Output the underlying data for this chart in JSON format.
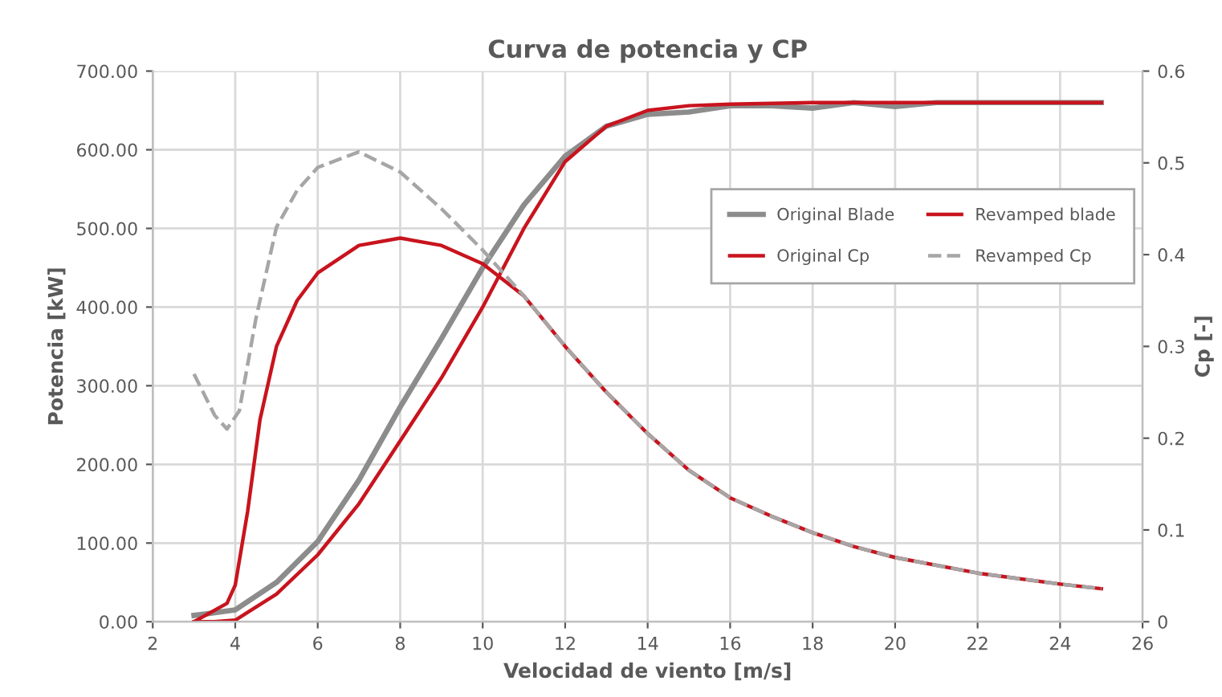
{
  "chart_data": {
    "type": "line",
    "title": "Curva de potencia y CP",
    "xlabel": "Velocidad de viento [m/s]",
    "ylabel": "Potencia [kW]",
    "y2label": "Cp [-]",
    "xlim": [
      2,
      26
    ],
    "xticks": [
      2,
      4,
      6,
      8,
      10,
      12,
      14,
      16,
      18,
      20,
      22,
      24,
      26
    ],
    "ylim": [
      0,
      700
    ],
    "yticks": [
      {
        "value": 0,
        "label": "0.00"
      },
      {
        "value": 100,
        "label": "100.00"
      },
      {
        "value": 200,
        "label": "200.00"
      },
      {
        "value": 300,
        "label": "300.00"
      },
      {
        "value": 400,
        "label": "400.00"
      },
      {
        "value": 500,
        "label": "500.00"
      },
      {
        "value": 600,
        "label": "600.00"
      },
      {
        "value": 700,
        "label": "700.00"
      }
    ],
    "y2lim": [
      0,
      0.6
    ],
    "y2ticks": [
      0,
      0.1,
      0.2,
      0.3,
      0.4,
      0.5,
      0.6
    ],
    "grid": true,
    "legend": "right",
    "line_style": "solid",
    "series": [
      {
        "name": "Original Blade",
        "color": "#8c8c8c",
        "x": [
          3,
          4,
          5,
          6,
          7,
          8,
          9,
          10,
          11,
          12,
          13,
          14,
          15,
          16,
          17,
          18,
          19,
          20,
          21,
          22,
          25
        ],
        "values": [
          8,
          15,
          50,
          102,
          180,
          273,
          360,
          450,
          530,
          592,
          630,
          645,
          648,
          656,
          656,
          653,
          660,
          655,
          660,
          660,
          660
        ]
      },
      {
        "name": "Revamped blade",
        "color": "#c8141e",
        "x": [
          3,
          3.5,
          4,
          5,
          6,
          7,
          8,
          9,
          10,
          11,
          12,
          13,
          14,
          15,
          16,
          18,
          20,
          22,
          25
        ],
        "values": [
          0,
          0,
          2,
          35,
          85,
          150,
          230,
          310,
          400,
          500,
          585,
          630,
          650,
          656,
          658,
          660,
          660,
          660,
          660
        ]
      },
      {
        "name": "Original Cp",
        "color": "#c8141e",
        "axis": "y2",
        "x": [
          3,
          3.8,
          4,
          4.3,
          4.6,
          5,
          5.5,
          6,
          7,
          8,
          9,
          10,
          11,
          12,
          13,
          14,
          15,
          16,
          17,
          18,
          19,
          20,
          22,
          24,
          25
        ],
        "values": [
          0,
          0.02,
          0.04,
          0.12,
          0.22,
          0.3,
          0.35,
          0.38,
          0.41,
          0.418,
          0.41,
          0.39,
          0.355,
          0.3,
          0.25,
          0.205,
          0.165,
          0.135,
          0.115,
          0.097,
          0.082,
          0.07,
          0.053,
          0.041,
          0.036
        ]
      },
      {
        "name": "Revamped Cp",
        "color": "#a6a6a6",
        "axis": "y2",
        "line_style": "dashed",
        "x": [
          3,
          3.5,
          3.8,
          4.1,
          4.5,
          5,
          5.5,
          6,
          7,
          8,
          9,
          10,
          11,
          12,
          13,
          14,
          15,
          16,
          17,
          18,
          19,
          20,
          22,
          24,
          25
        ],
        "values": [
          0.27,
          0.225,
          0.21,
          0.23,
          0.33,
          0.43,
          0.47,
          0.495,
          0.512,
          0.49,
          0.45,
          0.405,
          0.355,
          0.3,
          0.25,
          0.205,
          0.165,
          0.135,
          0.115,
          0.097,
          0.082,
          0.07,
          0.053,
          0.041,
          0.036
        ]
      }
    ]
  }
}
